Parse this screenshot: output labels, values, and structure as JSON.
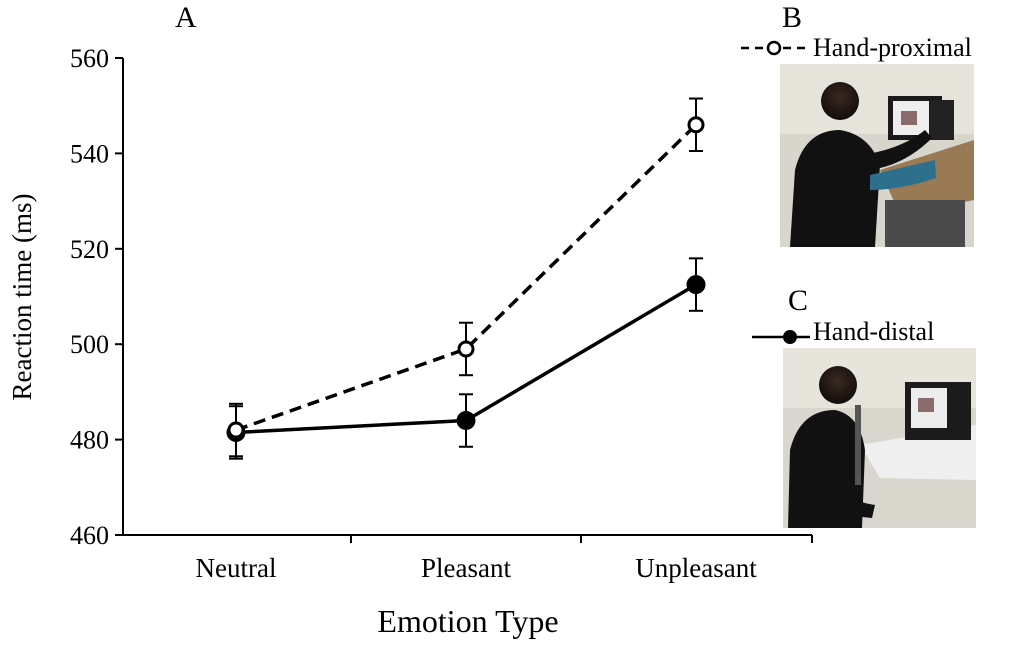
{
  "panels": {
    "a": "A",
    "b": "B",
    "c": "C"
  },
  "chart_data": {
    "type": "line",
    "xlabel": "Emotion Type",
    "ylabel": "Reaction time (ms)",
    "categories": [
      "Neutral",
      "Pleasant",
      "Unpleasant"
    ],
    "ylim": [
      460,
      560
    ],
    "yticks": [
      460,
      480,
      500,
      520,
      540,
      560
    ],
    "grid": false,
    "series": [
      {
        "name": "Hand-proximal",
        "style": "dashed",
        "marker": "open-circle",
        "values": [
          482,
          499,
          546
        ],
        "error": [
          5.5,
          5.5,
          5.5
        ]
      },
      {
        "name": "Hand-distal",
        "style": "solid",
        "marker": "filled-circle",
        "values": [
          481.5,
          484,
          512.5
        ],
        "error": [
          5.5,
          5.5,
          5.5
        ]
      }
    ]
  },
  "colors": {
    "line": "#000000",
    "background": "#ffffff"
  }
}
